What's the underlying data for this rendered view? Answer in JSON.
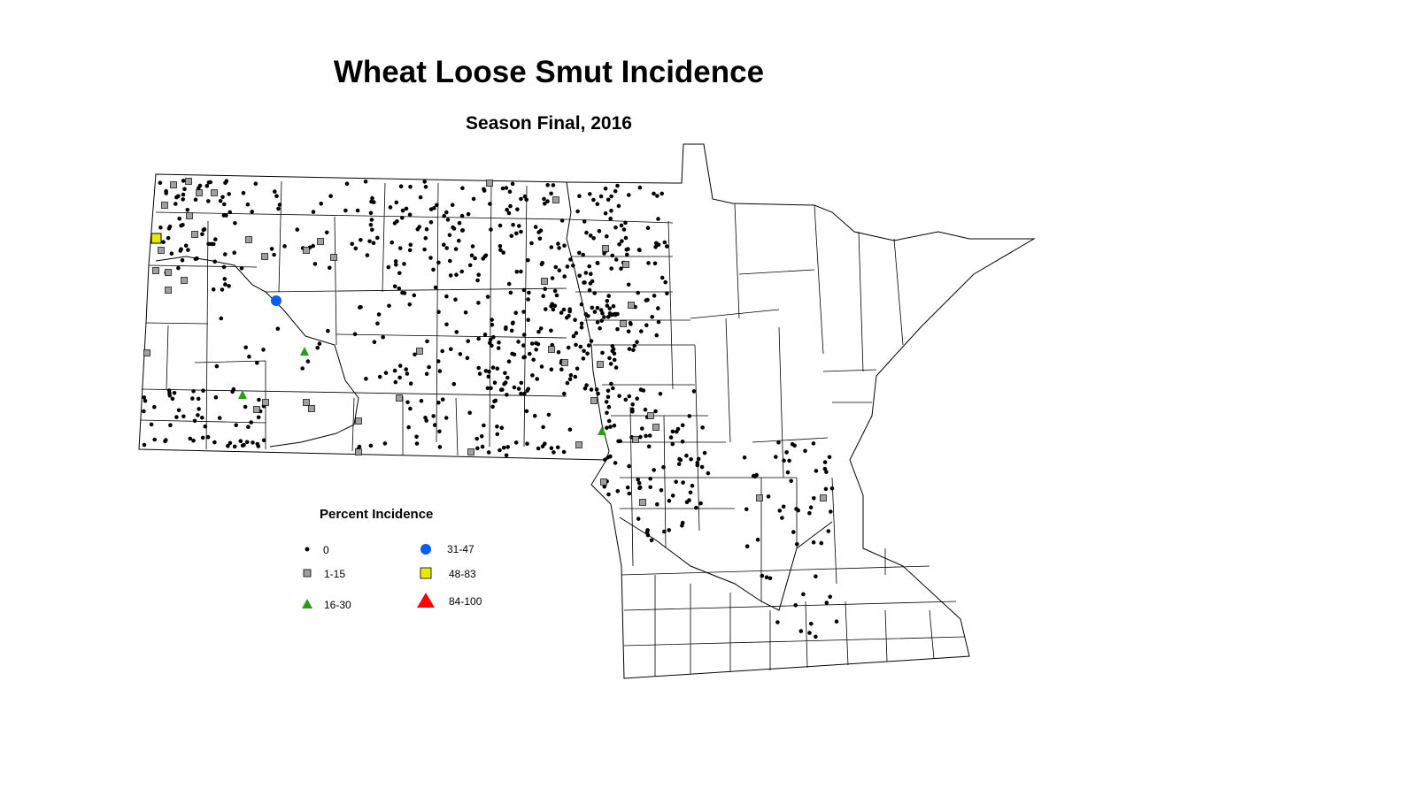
{
  "title": "Wheat Loose Smut Incidence",
  "subtitle": "Season Final, 2016",
  "legend": {
    "title": "Percent Incidence",
    "items": [
      {
        "label": "0",
        "shape": "small-circle",
        "color": "#000000"
      },
      {
        "label": "1-15",
        "shape": "square",
        "color": "#a0a0a0"
      },
      {
        "label": "16-30",
        "shape": "triangle",
        "color": "#2e9a1c"
      },
      {
        "label": "31-47",
        "shape": "circle",
        "color": "#0a5cf0"
      },
      {
        "label": "48-83",
        "shape": "square",
        "color": "#e8e800"
      },
      {
        "label": "84-100",
        "shape": "triangle",
        "color": "#ff0000"
      }
    ]
  }
}
